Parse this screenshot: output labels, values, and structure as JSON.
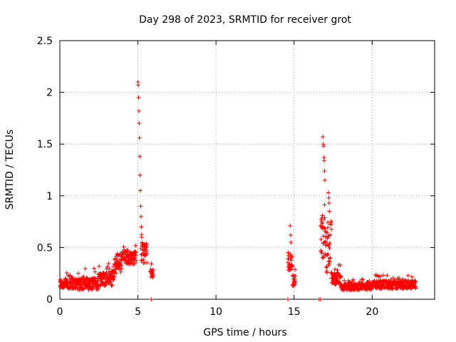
{
  "chart_data": {
    "type": "scatter",
    "title": "Day 298 of 2023, SRMTID for receiver grot",
    "xlabel": "GPS time / hours",
    "ylabel": "SRMTID / TECUs",
    "xlim": [
      0,
      24
    ],
    "ylim": [
      0,
      2.5
    ],
    "x_ticks": [
      0,
      5,
      10,
      15,
      20
    ],
    "x_tick_labels": [
      "0",
      "5",
      "10",
      "15",
      "20"
    ],
    "y_ticks": [
      0,
      0.5,
      1,
      1.5,
      2,
      2.5
    ],
    "y_tick_labels": [
      "0",
      "0.5",
      "1",
      "1.5",
      "2",
      "2.5"
    ],
    "grid": true,
    "marker": "+",
    "color": "#ff0000",
    "series": [
      {
        "name": "SRMTID",
        "segments": [
          {
            "x_start": 0.0,
            "x_end": 1.0,
            "base": 0.15,
            "noise": 0.05
          },
          {
            "x_start": 1.0,
            "x_end": 2.5,
            "base": 0.15,
            "noise": 0.06
          },
          {
            "x_start": 2.5,
            "x_end": 3.5,
            "base": 0.2,
            "noise": 0.07
          },
          {
            "x_start": 3.5,
            "x_end": 4.0,
            "base": 0.35,
            "noise": 0.1
          },
          {
            "x_start": 4.0,
            "x_end": 4.9,
            "base": 0.4,
            "noise": 0.06
          },
          {
            "x_start": 5.2,
            "x_end": 5.6,
            "base": 0.45,
            "noise": 0.1
          },
          {
            "x_start": 5.8,
            "x_end": 6.0,
            "base": 0.25,
            "noise": 0.04
          },
          {
            "x_start": 14.6,
            "x_end": 14.9,
            "base": 0.35,
            "noise": 0.08
          },
          {
            "x_start": 14.9,
            "x_end": 15.1,
            "base": 0.18,
            "noise": 0.05
          },
          {
            "x_start": 16.7,
            "x_end": 17.0,
            "base": 0.6,
            "noise": 0.2
          },
          {
            "x_start": 17.0,
            "x_end": 17.4,
            "base": 0.5,
            "noise": 0.25
          },
          {
            "x_start": 17.4,
            "x_end": 18.0,
            "base": 0.2,
            "noise": 0.06
          },
          {
            "x_start": 18.0,
            "x_end": 20.0,
            "base": 0.12,
            "noise": 0.03
          },
          {
            "x_start": 20.0,
            "x_end": 22.8,
            "base": 0.14,
            "noise": 0.04
          }
        ],
        "spikes": [
          {
            "x": 5.0,
            "y": 2.1
          },
          {
            "x": 5.02,
            "y": 2.07
          },
          {
            "x": 5.04,
            "y": 1.95
          },
          {
            "x": 5.06,
            "y": 1.82
          },
          {
            "x": 5.08,
            "y": 1.7
          },
          {
            "x": 5.1,
            "y": 1.56
          },
          {
            "x": 5.12,
            "y": 1.38
          },
          {
            "x": 5.14,
            "y": 1.2
          },
          {
            "x": 5.16,
            "y": 1.05
          },
          {
            "x": 5.18,
            "y": 0.9
          },
          {
            "x": 5.2,
            "y": 0.8
          },
          {
            "x": 5.22,
            "y": 0.7
          },
          {
            "x": 5.24,
            "y": 0.6
          },
          {
            "x": 14.75,
            "y": 0.71
          },
          {
            "x": 14.78,
            "y": 0.62
          },
          {
            "x": 14.8,
            "y": 0.55
          },
          {
            "x": 16.85,
            "y": 1.57
          },
          {
            "x": 16.87,
            "y": 1.5
          },
          {
            "x": 16.89,
            "y": 1.48
          },
          {
            "x": 16.91,
            "y": 1.37
          },
          {
            "x": 16.93,
            "y": 1.34
          },
          {
            "x": 16.95,
            "y": 1.24
          },
          {
            "x": 16.97,
            "y": 1.15
          },
          {
            "x": 17.2,
            "y": 1.03
          },
          {
            "x": 17.22,
            "y": 0.98
          },
          {
            "x": 17.24,
            "y": 0.93
          },
          {
            "x": 17.26,
            "y": 0.85
          }
        ],
        "zero_points": [
          5.85,
          14.6,
          16.6,
          16.7
        ]
      }
    ]
  }
}
